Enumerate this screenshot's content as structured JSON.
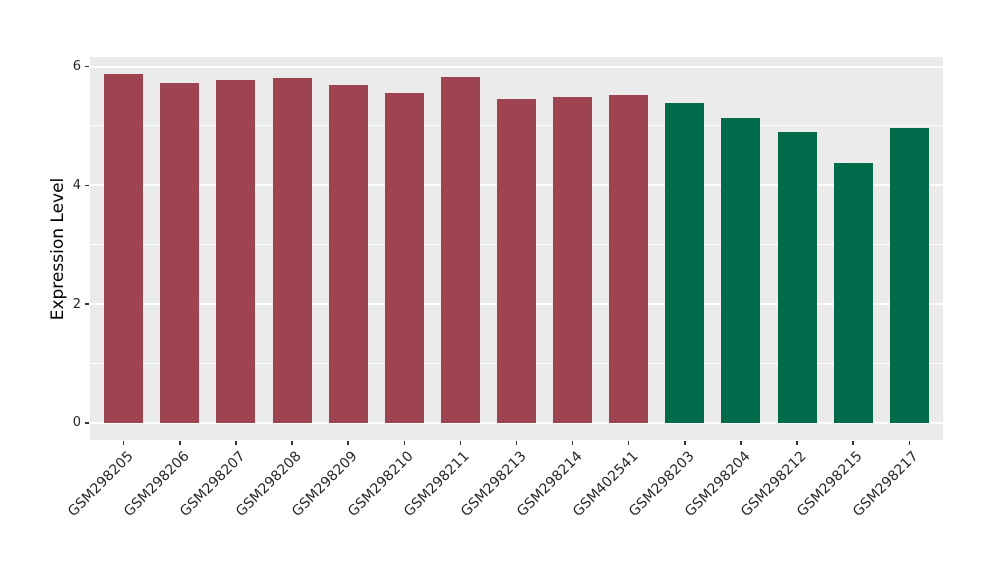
{
  "chart_data": {
    "type": "bar",
    "title": "",
    "xlabel": "",
    "ylabel": "Expression Level",
    "categories": [
      "GSM298205",
      "GSM298206",
      "GSM298207",
      "GSM298208",
      "GSM298209",
      "GSM298210",
      "GSM298211",
      "GSM298213",
      "GSM298214",
      "GSM402541",
      "GSM298203",
      "GSM298204",
      "GSM298212",
      "GSM298215",
      "GSM298217"
    ],
    "values": [
      5.87,
      5.73,
      5.77,
      5.8,
      5.69,
      5.55,
      5.82,
      5.46,
      5.48,
      5.52,
      5.38,
      5.14,
      4.89,
      4.38,
      4.96
    ],
    "bar_colors": [
      "#9E4451",
      "#9E4451",
      "#9E4451",
      "#9E4451",
      "#9E4451",
      "#9E4451",
      "#9E4451",
      "#9E4451",
      "#9E4451",
      "#9E4451",
      "#006B4A",
      "#006B4A",
      "#006B4A",
      "#006B4A",
      "#006B4A"
    ],
    "group_colors": {
      "red_group": "#9E4451",
      "green_group": "#006B4A"
    },
    "yticks": [
      0,
      2,
      4,
      6
    ],
    "yticks_minor": [
      1,
      3,
      5
    ],
    "ylim": [
      -0.29,
      6.16
    ],
    "grid": "on",
    "legend": "none",
    "panel_bg": "#EBEBEB",
    "grid_color": "#FFFFFF"
  }
}
